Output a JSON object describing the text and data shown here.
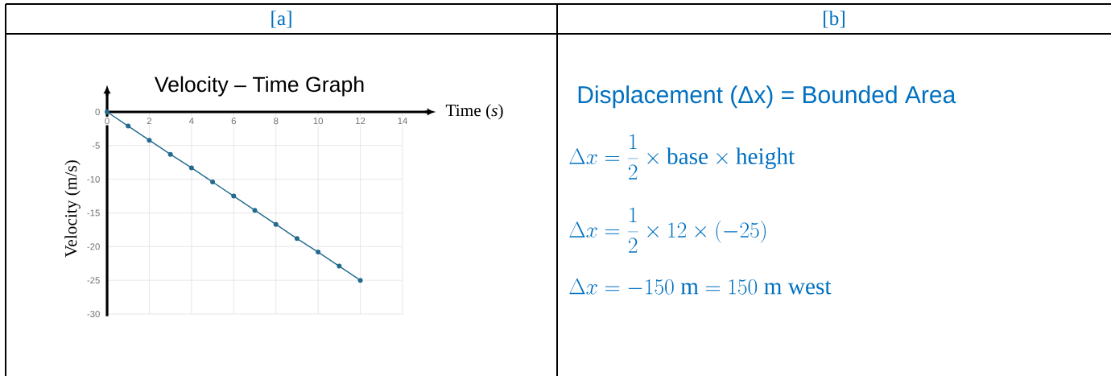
{
  "chart_data": [
    {
      "type": "line",
      "title": "Velocity – Time Graph",
      "xlabel": "Time (*s*)",
      "ylabel": "Velocity (m/s)",
      "annotations": [
        "[a]"
      ],
      "x": [
        0,
        1,
        2,
        3,
        4,
        5,
        6,
        7,
        8,
        9,
        10,
        11,
        12
      ],
      "values": [
        0,
        -2.1,
        -4.2,
        -6.3,
        -8.3,
        -10.4,
        -12.5,
        -14.6,
        -16.7,
        -18.8,
        -20.8,
        -22.9,
        -25
      ],
      "color": "#236b8e",
      "xlim": [
        0,
        14
      ],
      "ylim": [
        -30,
        0
      ],
      "xticks": [
        0,
        2,
        4,
        6,
        8,
        10,
        12,
        14
      ],
      "yticks": [
        -30,
        -25,
        -20,
        -15,
        -10,
        -5,
        0
      ],
      "grid": true,
      "marker": "circle"
    },
    {
      "type": "other",
      "title": "[b]",
      "subtitle": "Displacement (Δx) = Bounded Area",
      "annotations": [
        "\\Delta x = \\frac{1}{2} \\times \\mathrm{base} \\times \\mathrm{height}",
        "\\Delta x = \\frac{1}{2} \\times 12 \\times (-25)",
        "\\Delta x = -150\\ \\mathrm{m} = 150\\ \\mathrm{m\\ west}"
      ]
    }
  ]
}
